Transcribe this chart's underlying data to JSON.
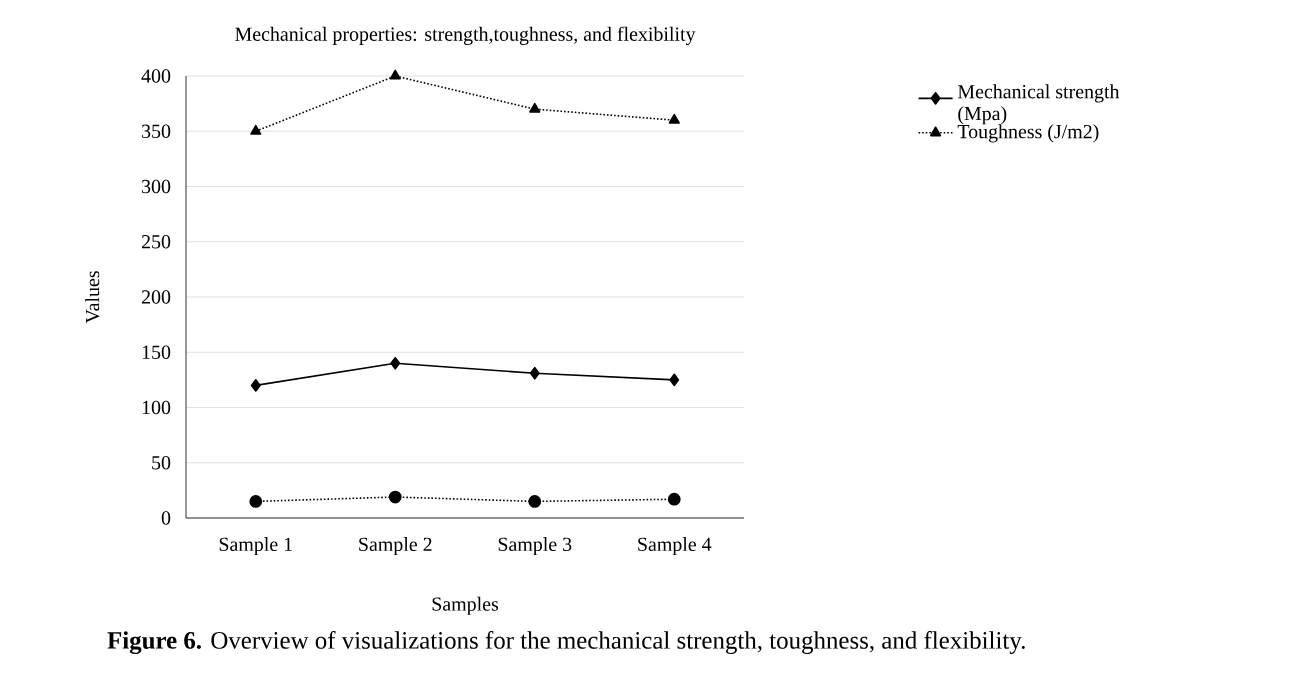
{
  "chart_data": {
    "type": "line",
    "title": "Mechanical properties: strength,toughness, and flexibility",
    "xlabel": "Samples",
    "ylabel": "Values",
    "categories": [
      "Sample 1",
      "Sample 2",
      "Sample 3",
      "Sample 4"
    ],
    "series": [
      {
        "name": "Mechanical strength (Mpa)",
        "color": "#000000",
        "values": [
          120,
          140,
          131,
          125
        ],
        "marker": "diamond",
        "line_style": "solid"
      },
      {
        "name": "Toughness (J/m2)",
        "color": "#000000",
        "values": [
          350,
          400,
          370,
          360
        ],
        "marker": "triangle",
        "line_style": "dotted"
      },
      {
        "color": "#000000",
        "values": [
          15,
          19,
          15,
          17
        ],
        "marker": "circle",
        "line_style": "dotted"
      }
    ],
    "ylim": [
      0,
      400
    ],
    "yticks": [
      0,
      50,
      100,
      150,
      200,
      250,
      300,
      350,
      400
    ],
    "grid": "y",
    "legend": "top right",
    "annotations": [
      "**Figure 6.** Overview of visualizations for the mechanical strength, toughness, and flexibility."
    ]
  }
}
